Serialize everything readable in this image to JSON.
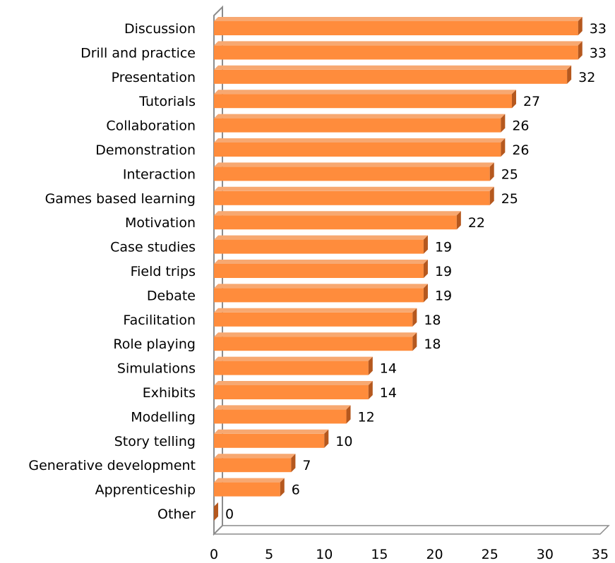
{
  "chart_data": {
    "type": "bar",
    "orientation": "horizontal",
    "style": "3d",
    "categories": [
      "Discussion",
      "Drill and practice",
      "Presentation",
      "Tutorials",
      "Collaboration",
      "Demonstration",
      "Interaction",
      "Games based learning",
      "Motivation",
      "Case studies",
      "Field trips",
      "Debate",
      "Facilitation",
      "Role playing",
      "Simulations",
      "Exhibits",
      "Modelling",
      "Story telling",
      "Generative development",
      "Apprenticeship",
      "Other"
    ],
    "values": [
      33,
      33,
      32,
      27,
      26,
      26,
      25,
      25,
      22,
      19,
      19,
      19,
      18,
      18,
      14,
      14,
      12,
      10,
      7,
      6,
      0
    ],
    "xlim": [
      0,
      35
    ],
    "xticks": [
      "0",
      "5",
      "10",
      "15",
      "20",
      "25",
      "30",
      "35"
    ],
    "data_labels": true,
    "legend": "none",
    "grid": false,
    "colors": {
      "bar_front": "#FF8C3C",
      "bar_top": "#F7A871",
      "bar_side": "#B5581E",
      "axis": "#8C8C8C"
    }
  }
}
